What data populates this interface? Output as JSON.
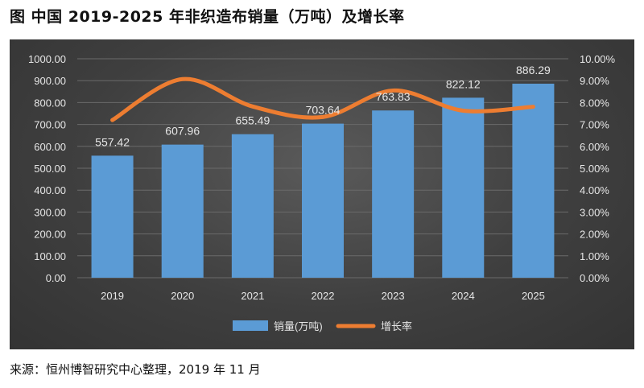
{
  "title": "图  中国 2019-2025 年非织造布销量（万吨）及增长率",
  "source": "来源：恒州博智研究中心整理，2019 年 11 月",
  "chart_data": {
    "type": "bar+line",
    "categories": [
      "2019",
      "2020",
      "2021",
      "2022",
      "2023",
      "2024",
      "2025"
    ],
    "series": [
      {
        "name": "销量(万吨)",
        "type": "bar",
        "axis": "left",
        "values": [
          557.42,
          607.96,
          655.49,
          703.64,
          763.83,
          822.12,
          886.29
        ],
        "labels": [
          "557.42",
          "607.96",
          "655.49",
          "703.64",
          "763.83",
          "822.12",
          "886.29"
        ],
        "color": "#5b9bd5"
      },
      {
        "name": "增长率",
        "type": "line",
        "axis": "right",
        "values": [
          7.2,
          9.07,
          7.82,
          7.34,
          8.55,
          7.63,
          7.81
        ],
        "color": "#ed7d31"
      }
    ],
    "y_left": {
      "min": 0,
      "max": 1000,
      "step": 100,
      "ticks": [
        "0.00",
        "100.00",
        "200.00",
        "300.00",
        "400.00",
        "500.00",
        "600.00",
        "700.00",
        "800.00",
        "900.00",
        "1000.00"
      ]
    },
    "y_right": {
      "min": 0,
      "max": 10,
      "step": 1,
      "ticks": [
        "0.00%",
        "1.00%",
        "2.00%",
        "3.00%",
        "4.00%",
        "5.00%",
        "6.00%",
        "7.00%",
        "8.00%",
        "9.00%",
        "10.00%"
      ]
    },
    "grid": true,
    "legend": "bottom",
    "colors": {
      "background": "#404040",
      "text": "#e6e6e6",
      "grid": "#6a6a6a"
    }
  }
}
